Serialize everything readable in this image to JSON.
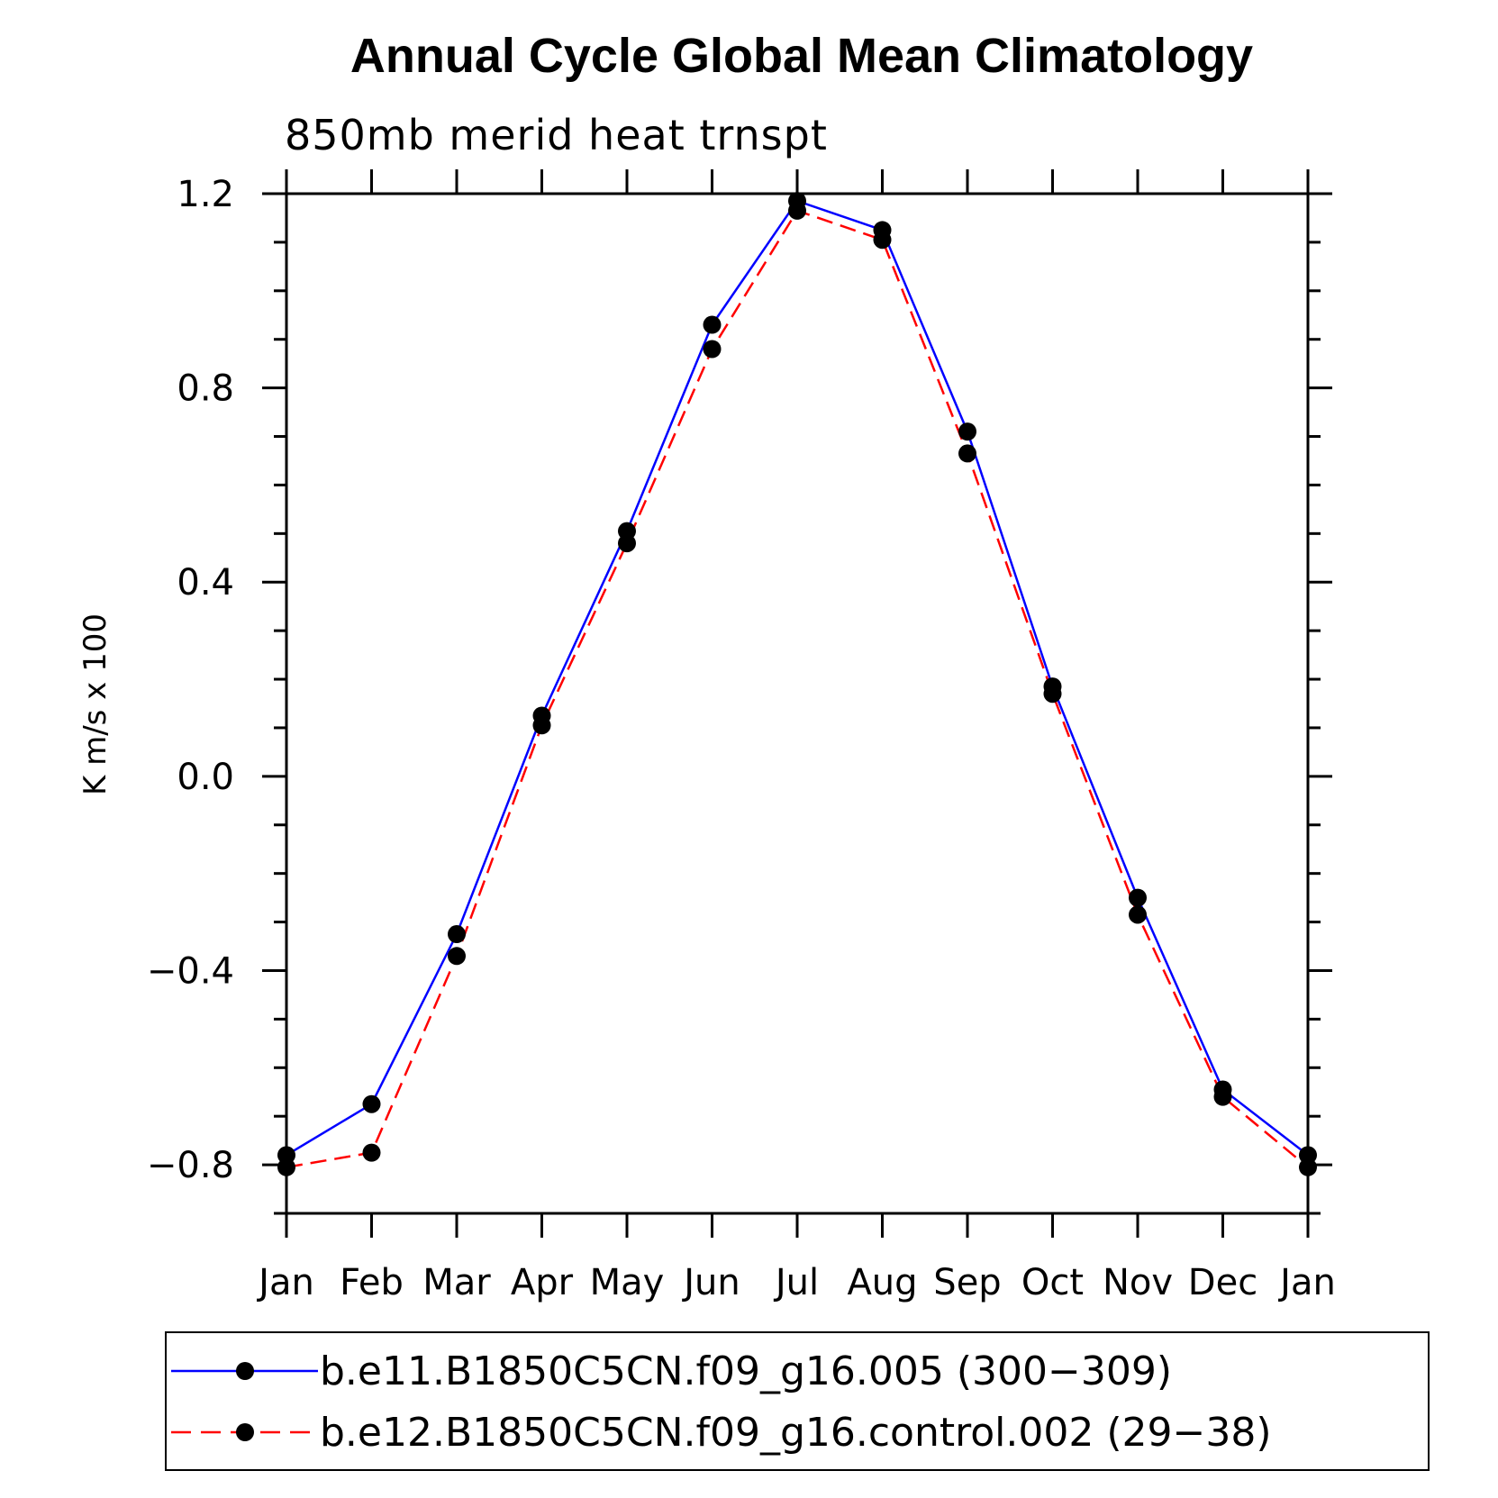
{
  "chart_data": {
    "type": "line",
    "title": "Annual Cycle Global Mean Climatology",
    "subtitle": "850mb merid heat trnspt",
    "xlabel": "",
    "ylabel": "K m/s x 100",
    "categories": [
      "Jan",
      "Feb",
      "Mar",
      "Apr",
      "May",
      "Jun",
      "Jul",
      "Aug",
      "Sep",
      "Oct",
      "Nov",
      "Dec",
      "Jan"
    ],
    "yticks": [
      "1.2",
      "0.8",
      "0.4",
      "0.0",
      "−0.4",
      "−0.8"
    ],
    "ytick_values": [
      1.2,
      0.8,
      0.4,
      0.0,
      -0.4,
      -0.8
    ],
    "ylim": [
      -0.9,
      1.2
    ],
    "series": [
      {
        "name": "b.e11.B1850C5CN.f09_g16.005 (300−309)",
        "color": "#0000ff",
        "dash": "solid",
        "values": [
          -0.78,
          -0.675,
          -0.325,
          0.125,
          0.505,
          0.93,
          1.185,
          1.125,
          0.71,
          0.185,
          -0.25,
          -0.645,
          -0.78
        ]
      },
      {
        "name": "b.e12.B1850C5CN.f09_g16.control.002 (29−38)",
        "color": "#ff0000",
        "dash": "dashed",
        "values": [
          -0.805,
          -0.775,
          -0.37,
          0.105,
          0.48,
          0.88,
          1.165,
          1.105,
          0.665,
          0.17,
          -0.285,
          -0.66,
          -0.805
        ]
      }
    ],
    "legend_position": "bottom",
    "marker": "filled-circle"
  }
}
